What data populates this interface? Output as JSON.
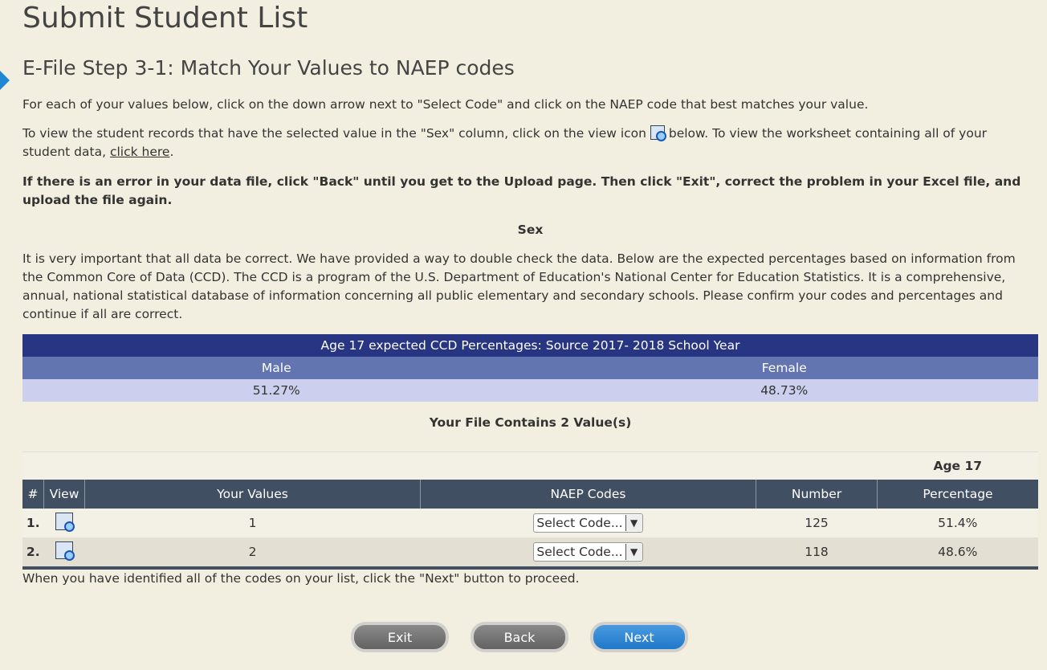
{
  "title": "Submit Student List",
  "step_title": "E-File Step 3-1: Match Your Values to NAEP codes",
  "intro": "For each of your values below, click on the down arrow next to \"Select Code\" and click on the NAEP code that best matches your value.",
  "view_text_1": "To view the student records that have the selected value in the \"Sex\" column, click on the view icon",
  "view_text_2": " below. To view the worksheet containing all of your student data, ",
  "click_here": "click here",
  "view_text_end": ".",
  "error_text": "If there is an error in your data file, click \"Back\" until you get to the Upload page. Then click \"Exit\", correct the problem in your Excel file, and upload the file again.",
  "variable": "Sex",
  "ccd_text": "It is very important that all data be correct. We have provided a way to double check the data. Below are the expected percentages based on information from the Common Core of Data (CCD). The CCD is a program of the U.S. Department of Education's National Center for Education Statistics. It is a comprehensive, annual, national statistical database of information concerning all public elementary and secondary schools. Please confirm your codes and percentages and continue if all are correct.",
  "ccd_table": {
    "title": "Age 17 expected CCD Percentages: Source 2017- 2018 School Year",
    "headers": [
      "Male",
      "Female"
    ],
    "values": [
      "51.27%",
      "48.73%"
    ]
  },
  "file_contains": "Your File Contains 2 Value(s)",
  "values_table": {
    "age_label": "Age 17",
    "headers": [
      "#",
      "View",
      "Your Values",
      "NAEP Codes",
      "Number",
      "Percentage"
    ],
    "rows": [
      {
        "num": "1.",
        "value": "1",
        "code": "Select Code...",
        "number": "125",
        "pct": "51.4%"
      },
      {
        "num": "2.",
        "value": "2",
        "code": "Select Code...",
        "number": "118",
        "pct": "48.6%"
      }
    ]
  },
  "footer_text": "When you have identified all of the codes on your list, click the \"Next\" button to proceed.",
  "buttons": {
    "exit": "Exit",
    "back": "Back",
    "next": "Next"
  }
}
